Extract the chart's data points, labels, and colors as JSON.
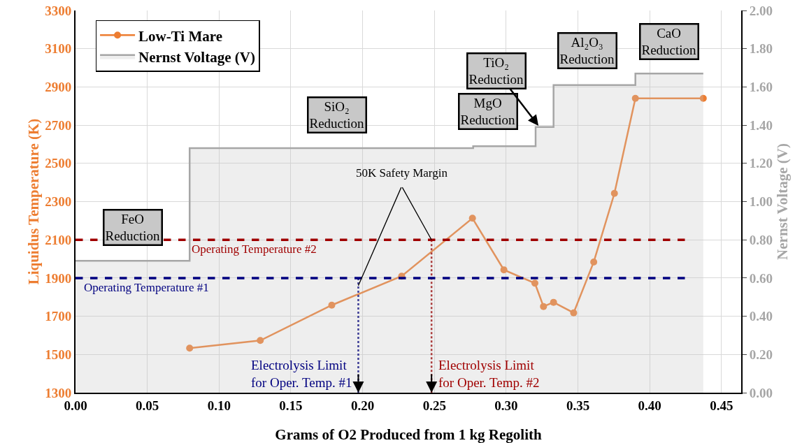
{
  "chart_data": {
    "type": "line",
    "xlabel": "Grams of O2 Produced from 1 kg Regolith",
    "ylabel": "Liquidus Temperature (K)",
    "y2label": "Nernst Voltage (V)",
    "xlim": [
      0,
      0.4637
    ],
    "xticks": [
      {
        "value": 0,
        "label": "0.00"
      },
      {
        "value": 0.05,
        "label": "0.05"
      },
      {
        "value": 0.1,
        "label": "0.10"
      },
      {
        "value": 0.15,
        "label": "0.15"
      },
      {
        "value": 0.2,
        "label": "0.20"
      },
      {
        "value": 0.25,
        "label": "0.25"
      },
      {
        "value": 0.3,
        "label": "0.30"
      },
      {
        "value": 0.35,
        "label": "0.35"
      },
      {
        "value": 0.4,
        "label": "0.40"
      },
      {
        "value": 0.45,
        "label": "0.45"
      }
    ],
    "ylim": [
      1300,
      3300
    ],
    "yticks": [
      1300,
      1500,
      1700,
      1900,
      2100,
      2300,
      2500,
      2700,
      2900,
      3100,
      3300
    ],
    "y2lim": [
      0,
      2
    ],
    "y2ticks": [
      {
        "value": 0,
        "label": "0.00"
      },
      {
        "value": 0.2,
        "label": "0.20"
      },
      {
        "value": 0.4,
        "label": "0.40"
      },
      {
        "value": 0.6,
        "label": "0.60"
      },
      {
        "value": 0.8,
        "label": "0.80"
      },
      {
        "value": 1,
        "label": "1.00"
      },
      {
        "value": 1.2,
        "label": "1.20"
      },
      {
        "value": 1.4,
        "label": "1.40"
      },
      {
        "value": 1.6,
        "label": "1.60"
      },
      {
        "value": 1.8,
        "label": "1.80"
      },
      {
        "value": 2,
        "label": "2.00"
      }
    ],
    "grid": true,
    "legend": "top left",
    "series": [
      {
        "name": "Low-Ti Mare",
        "color": "#ed7d31",
        "marker": "circle",
        "x": [
          0.0795,
          0.1287,
          0.1785,
          0.2272,
          0.2765,
          0.2984,
          0.32,
          0.326,
          0.333,
          0.347,
          0.361,
          0.3754,
          0.39,
          0.4373
        ],
        "values": [
          1533,
          1573,
          1758,
          1910,
          2213,
          1943,
          1873,
          1751,
          1773,
          1718,
          1984,
          2343,
          2840,
          2840
        ]
      },
      {
        "name": "Nernst Voltage (V)",
        "type": "area",
        "axis": "y2",
        "color": "#a6a6a6",
        "marker": "none",
        "x": [
          0,
          0.0795,
          0.0795,
          0.277,
          0.277,
          0.3205,
          0.3205,
          0.333,
          0.333,
          0.39,
          0.39,
          0.4373
        ],
        "values": [
          0.69,
          0.69,
          1.28,
          1.28,
          1.29,
          1.29,
          1.39,
          1.39,
          1.61,
          1.61,
          1.67,
          1.67
        ]
      },
      {
        "type": "line",
        "color": "#000080",
        "line_style": "dotted",
        "marker": "none",
        "x": [
          0.197,
          0.197
        ],
        "values": [
          1900,
          1300
        ]
      },
      {
        "type": "line",
        "color": "#a00000",
        "line_style": "dotted",
        "marker": "none",
        "x": [
          0.248,
          0.248
        ],
        "values": [
          2100,
          1300
        ]
      }
    ],
    "ref_lines": [
      {
        "axis": "y",
        "value": 2100,
        "label": "Operating Temperature #2",
        "color": "#a00000",
        "line_style": "dashed"
      },
      {
        "axis": "y",
        "value": 1900,
        "label": "Operating Temperature #1",
        "color": "#000080",
        "line_style": "dashed"
      }
    ],
    "annotations": [
      "FeO\nReduction",
      "SiO₂\nReduction",
      "MgO\nReduction",
      {
        "text": "TiO₂\nReduction",
        "x": 0.3225,
        "y": 2697
      },
      "Al₂O₃\nReduction",
      "CaO\nReduction",
      {
        "text": "50K Safety Margin",
        "x": 0.197,
        "y": 1860
      },
      {
        "text": "Electrolysis Limit\nfor Oper. Temp. #1",
        "x": 0.197,
        "y": 1300
      },
      {
        "text": "Electrolysis Limit\nfor Oper. Temp. #2",
        "x": 0.248,
        "y": 1300
      }
    ]
  }
}
